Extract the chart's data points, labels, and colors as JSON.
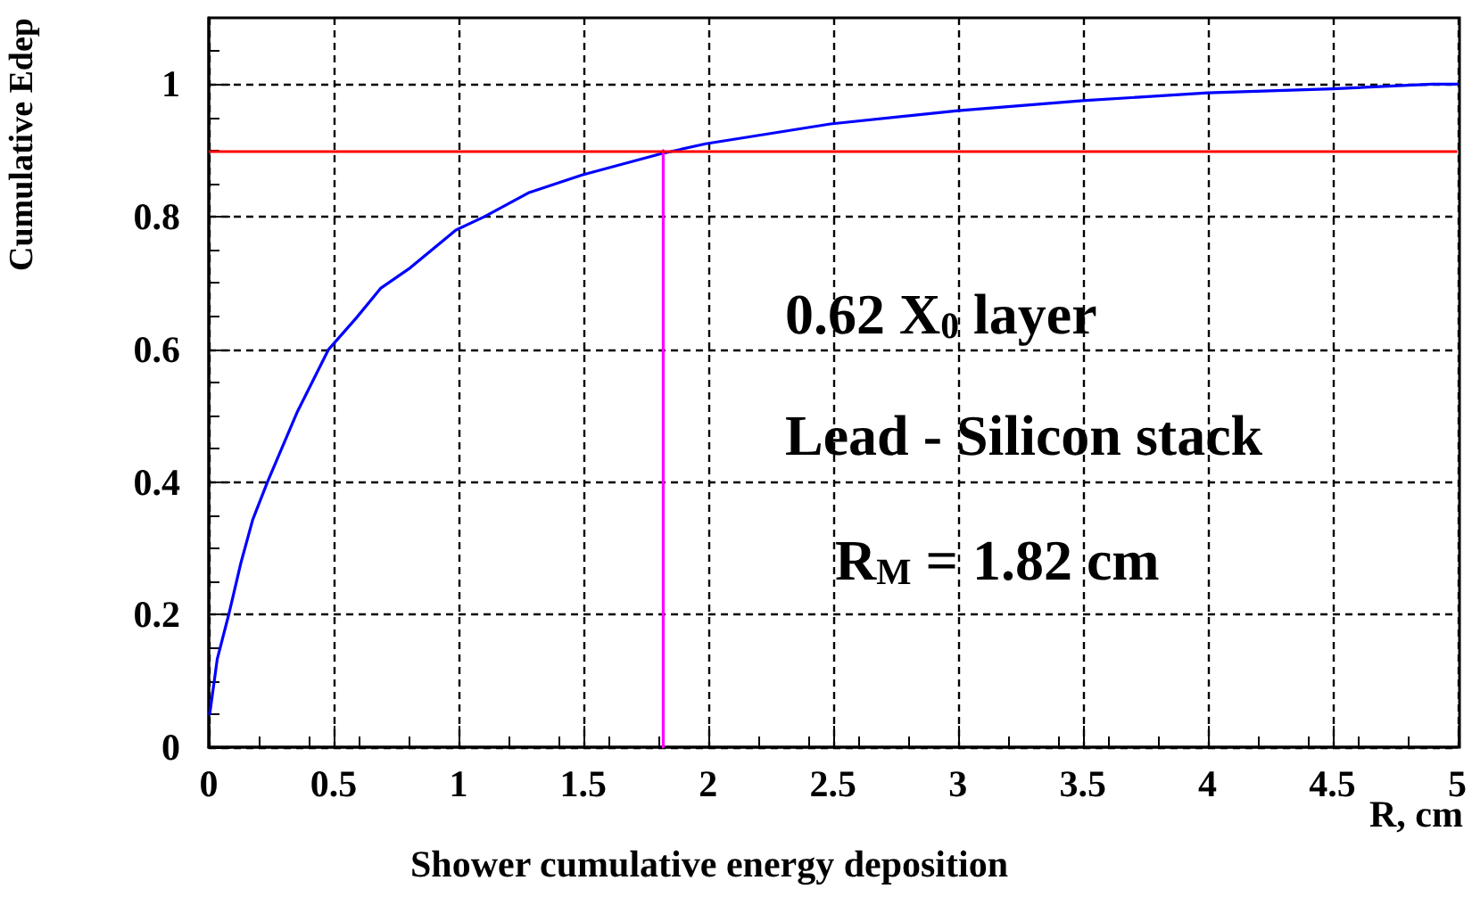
{
  "chart_data": {
    "type": "line",
    "xlabel": "R, cm",
    "ylabel": "Cumulative Edep",
    "xlim": [
      0,
      5
    ],
    "ylim": [
      0,
      1.1
    ],
    "xticks": [
      0,
      0.5,
      1,
      1.5,
      2,
      2.5,
      3,
      3.5,
      4,
      4.5,
      5
    ],
    "yticks": [
      0,
      0.2,
      0.4,
      0.6,
      0.8,
      1
    ],
    "grid": true,
    "marker": "none",
    "line_style": "solid",
    "series": [
      {
        "color": "#0000ff",
        "x": [
          0.004,
          0.034,
          0.08,
          0.128,
          0.176,
          0.235,
          0.355,
          0.48,
          0.59,
          0.688,
          0.807,
          0.99,
          1.103,
          1.28,
          1.495,
          1.81,
          1.99,
          2.49,
          3.0,
          3.5,
          4.0,
          4.5,
          4.9,
          5.0
        ],
        "values": [
          0.05,
          0.133,
          0.2,
          0.277,
          0.343,
          0.4,
          0.506,
          0.6,
          0.647,
          0.692,
          0.723,
          0.78,
          0.8,
          0.836,
          0.863,
          0.895,
          0.91,
          0.94,
          0.96,
          0.975,
          0.987,
          0.993,
          1.0,
          1.0
        ]
      },
      {
        "color": "#ff00ff",
        "x": [
          1.82,
          1.82
        ],
        "values": [
          0,
          0.9
        ]
      }
    ],
    "ref_lines": [
      {
        "axis": "y",
        "value": 0.9,
        "color": "#ff0000"
      }
    ],
    "annotations": [
      "0.62 X$_{0}$ layer",
      "Lead - Silicon stack",
      "R$_{M}$ = 1.82 cm",
      "Shower cumulative energy deposition"
    ]
  }
}
